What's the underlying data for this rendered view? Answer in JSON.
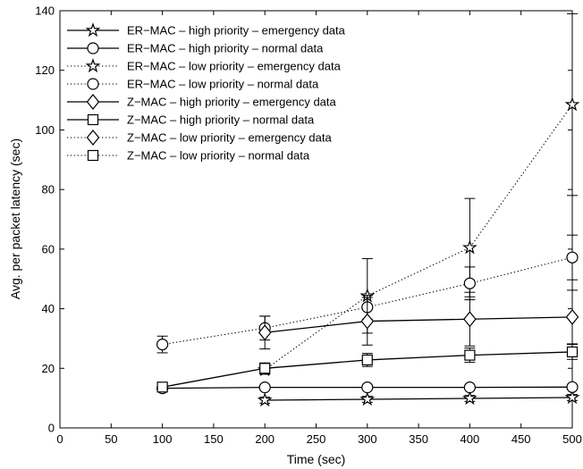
{
  "chart_data": {
    "type": "line",
    "xlabel": "Time (sec)",
    "ylabel": "Avg. per packet latency (sec)",
    "xlim": [
      0,
      500
    ],
    "ylim": [
      0,
      140
    ],
    "xticks": [
      0,
      50,
      100,
      150,
      200,
      250,
      300,
      350,
      400,
      450,
      500
    ],
    "yticks": [
      0,
      20,
      40,
      60,
      80,
      100,
      120,
      140
    ],
    "legend_position": "top-left",
    "grid": false,
    "series": [
      {
        "name": "ER−MAC – high priority – emergency data",
        "line": "solid",
        "marker": "star",
        "x": [
          200,
          300,
          400,
          500
        ],
        "y": [
          9.3,
          9.6,
          9.9,
          10.2
        ],
        "err": [
          1.0,
          1.0,
          1.0,
          1.0
        ]
      },
      {
        "name": "ER−MAC – high priority – normal data",
        "line": "solid",
        "marker": "circle",
        "x": [
          100,
          200,
          300,
          400,
          500
        ],
        "y": [
          13.3,
          13.6,
          13.6,
          13.6,
          13.7
        ],
        "err": [
          0,
          0,
          0,
          0,
          0
        ]
      },
      {
        "name": "ER−MAC – low priority – emergency data",
        "line": "dotted",
        "marker": "star",
        "x": [
          200,
          300,
          400,
          500
        ],
        "y": [
          19.5,
          44.3,
          60.5,
          108.5
        ],
        "err": [
          1.5,
          12.5,
          16.5,
          30.5
        ]
      },
      {
        "name": "ER−MAC – low priority – normal data",
        "line": "dotted",
        "marker": "circle",
        "x": [
          100,
          200,
          300,
          400,
          500
        ],
        "y": [
          28,
          33.5,
          40.5,
          48.5,
          57.2
        ],
        "err": [
          2.8,
          4.0,
          4.0,
          5.5,
          7.5
        ]
      },
      {
        "name": "Z−MAC – high priority – emergency data",
        "line": "solid",
        "marker": "diamond",
        "x": [
          200,
          300,
          400,
          500
        ],
        "y": [
          32,
          35.8,
          36.5,
          37.2
        ],
        "err": [
          5.5,
          8.0,
          9.0,
          9.0
        ]
      },
      {
        "name": "Z−MAC – high priority – normal data",
        "line": "solid",
        "marker": "square",
        "x": [
          100,
          200,
          300,
          400,
          500
        ],
        "y": [
          13.7,
          20,
          22.8,
          24.4,
          25.5
        ],
        "err": [
          1.0,
          1.8,
          2.2,
          2.4,
          2.5
        ]
      },
      {
        "name": "Z−MAC – low priority – emergency data",
        "line": "dotted",
        "marker": "diamond",
        "x": [],
        "y": [],
        "err": []
      },
      {
        "name": "Z−MAC – low priority – normal data",
        "line": "dotted",
        "marker": "square",
        "x": [],
        "y": [],
        "err": []
      }
    ]
  }
}
